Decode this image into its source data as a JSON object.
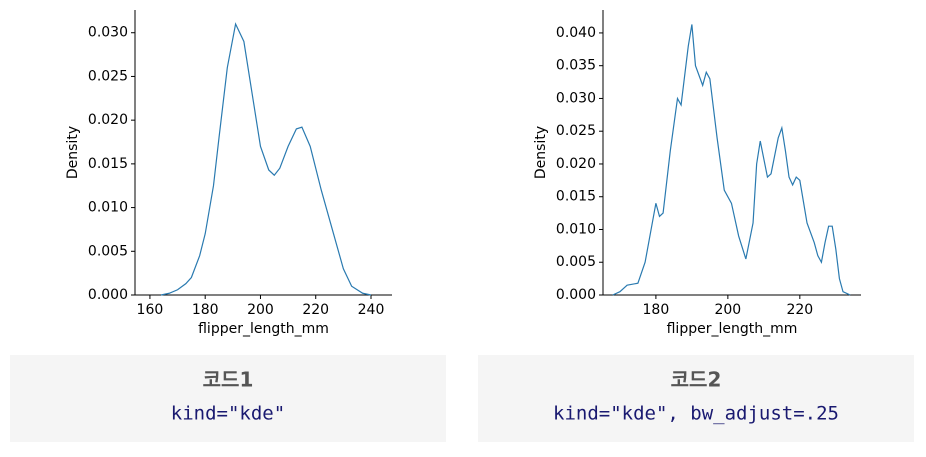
{
  "chart_data": [
    {
      "type": "line",
      "x_label": "flipper_length_mm",
      "y_label": "Density",
      "color": "#2a7ab0",
      "x": [
        164,
        167,
        170,
        173,
        175,
        178,
        180,
        183,
        185,
        188,
        191,
        194,
        197,
        200,
        203,
        205,
        207,
        210,
        213,
        215,
        218,
        222,
        226,
        230,
        233,
        237,
        240
      ],
      "values": [
        0.0,
        0.0002,
        0.0006,
        0.0013,
        0.002,
        0.0045,
        0.007,
        0.0125,
        0.018,
        0.026,
        0.031,
        0.029,
        0.023,
        0.017,
        0.0143,
        0.0137,
        0.0145,
        0.017,
        0.019,
        0.0192,
        0.017,
        0.012,
        0.0075,
        0.003,
        0.001,
        0.0002,
        0.0
      ],
      "xlim": [
        154.6,
        247.6
      ],
      "ylim": [
        0,
        0.0326
      ],
      "xticks": [
        160,
        180,
        200,
        220,
        240
      ],
      "yticks": [
        {
          "value": 0,
          "label": "0.000"
        },
        {
          "value": 0.005,
          "label": "0.005"
        },
        {
          "value": 0.01,
          "label": "0.010"
        },
        {
          "value": 0.015,
          "label": "0.015"
        },
        {
          "value": 0.02,
          "label": "0.020"
        },
        {
          "value": 0.025,
          "label": "0.025"
        },
        {
          "value": 0.03,
          "label": "0.030"
        }
      ]
    },
    {
      "type": "line",
      "x_label": "flipper_length_mm",
      "y_label": "Density",
      "color": "#2a7ab0",
      "x": [
        168,
        170,
        172,
        175,
        177,
        179,
        180,
        181,
        182,
        184,
        186,
        187,
        189,
        190,
        191,
        193,
        194,
        195,
        197,
        199,
        201,
        203,
        205,
        207,
        208,
        209,
        211,
        212,
        214,
        215,
        216,
        217,
        218,
        219,
        220,
        222,
        224,
        225,
        226,
        227,
        228,
        229,
        230,
        231,
        232,
        234
      ],
      "values": [
        0.0,
        0.0005,
        0.0015,
        0.0018,
        0.005,
        0.011,
        0.014,
        0.012,
        0.0125,
        0.022,
        0.03,
        0.029,
        0.038,
        0.0413,
        0.035,
        0.032,
        0.034,
        0.033,
        0.024,
        0.016,
        0.014,
        0.009,
        0.0055,
        0.011,
        0.02,
        0.0235,
        0.018,
        0.0185,
        0.024,
        0.0255,
        0.022,
        0.018,
        0.0168,
        0.018,
        0.0175,
        0.011,
        0.008,
        0.006,
        0.005,
        0.008,
        0.0105,
        0.0105,
        0.007,
        0.0025,
        0.0005,
        0.0
      ],
      "xlim": [
        165.3,
        237
      ],
      "ylim": [
        0,
        0.0435
      ],
      "xticks": [
        180,
        200,
        220
      ],
      "yticks": [
        {
          "value": 0,
          "label": "0.000"
        },
        {
          "value": 0.005,
          "label": "0.005"
        },
        {
          "value": 0.01,
          "label": "0.010"
        },
        {
          "value": 0.015,
          "label": "0.015"
        },
        {
          "value": 0.02,
          "label": "0.020"
        },
        {
          "value": 0.025,
          "label": "0.025"
        },
        {
          "value": 0.03,
          "label": "0.030"
        },
        {
          "value": 0.035,
          "label": "0.035"
        },
        {
          "value": 0.04,
          "label": "0.040"
        }
      ]
    }
  ],
  "captions": [
    {
      "title": "코드1",
      "code": "kind=\"kde\""
    },
    {
      "title": "코드2",
      "code": "kind=\"kde\", bw_adjust=.25"
    }
  ]
}
